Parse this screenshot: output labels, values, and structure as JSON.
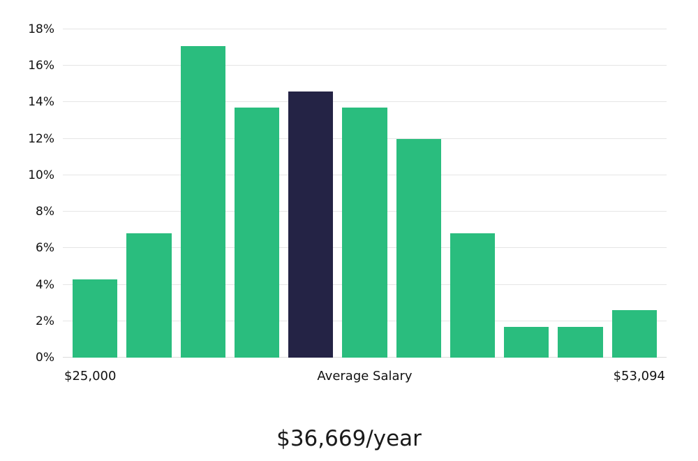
{
  "chart_data": {
    "type": "bar",
    "title": "$36,669/year",
    "values": [
      4.3,
      6.8,
      17.1,
      13.7,
      14.6,
      13.7,
      12.0,
      6.8,
      1.7,
      1.7,
      2.6
    ],
    "highlight_index": 4,
    "bar_color": "#2abd7e",
    "highlight_color": "#242345",
    "ylim": [
      0,
      18
    ],
    "y_tick_values": [
      0,
      2,
      4,
      6,
      8,
      10,
      12,
      14,
      16,
      18
    ],
    "y_tick_labels": [
      "0%",
      "2%",
      "4%",
      "6%",
      "8%",
      "10%",
      "12%",
      "14%",
      "16%",
      "18%"
    ],
    "x_labels": {
      "left": "$25,000",
      "center": "Average Salary",
      "right": "$53,094"
    },
    "grid": true,
    "legend": false,
    "gridline_color": "#e5e5e5"
  }
}
